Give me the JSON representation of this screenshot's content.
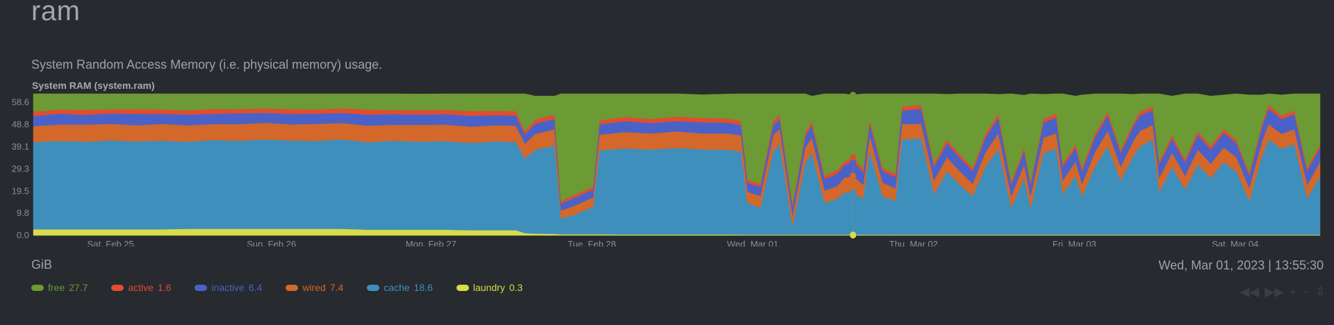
{
  "header": {
    "title": "ram",
    "description": "System Random Access Memory (i.e. physical memory) usage.",
    "chart_name": "System RAM (system.ram)"
  },
  "units": "GiB",
  "timestamp": "Wed, Mar 01, 2023 | 13:55:30",
  "legend": [
    {
      "name": "free",
      "value": "27.7",
      "color": "#6c9a34"
    },
    {
      "name": "active",
      "value": "1.6",
      "color": "#e14d2f"
    },
    {
      "name": "inactive",
      "value": "6.4",
      "color": "#4a62c7"
    },
    {
      "name": "wired",
      "value": "7.4",
      "color": "#d3682a"
    },
    {
      "name": "cache",
      "value": "18.6",
      "color": "#3f8fbd"
    },
    {
      "name": "laundry",
      "value": "0.3",
      "color": "#d8dc4a"
    }
  ],
  "toolbar": [
    {
      "name": "pan-left-icon",
      "glyph": "◀◀"
    },
    {
      "name": "pan-right-icon",
      "glyph": "▶▶"
    },
    {
      "name": "zoom-in-icon",
      "glyph": "+"
    },
    {
      "name": "zoom-out-icon",
      "glyph": "−"
    },
    {
      "name": "resize-icon",
      "glyph": "⇕"
    }
  ],
  "chart_data": {
    "type": "area",
    "stacked": true,
    "ylabel": "GiB",
    "ylim": [
      0,
      62.5
    ],
    "xlim": [
      0,
      1
    ],
    "yticks": [
      0.0,
      9.8,
      19.5,
      29.3,
      39.1,
      48.8,
      58.6
    ],
    "x_ticks": [
      {
        "label": "Sat, Feb 25,",
        "pos": 0.061
      },
      {
        "label": "Sun, Feb 26,",
        "pos": 0.186
      },
      {
        "label": "Mon, Feb 27,",
        "pos": 0.31
      },
      {
        "label": "Tue, Feb 28,",
        "pos": 0.435
      },
      {
        "label": "Wed, Mar 01,",
        "pos": 0.56
      },
      {
        "label": "Thu, Mar 02,",
        "pos": 0.685
      },
      {
        "label": "Fri, Mar 03,",
        "pos": 0.81
      },
      {
        "label": "Sat, Mar 04,",
        "pos": 0.935
      }
    ],
    "cursor_x": 0.637,
    "series_order": [
      "laundry",
      "cache",
      "wired",
      "inactive",
      "active",
      "free"
    ],
    "x": [
      0,
      0.02,
      0.04,
      0.06,
      0.08,
      0.1,
      0.12,
      0.14,
      0.16,
      0.18,
      0.2,
      0.22,
      0.24,
      0.26,
      0.28,
      0.3,
      0.32,
      0.34,
      0.36,
      0.375,
      0.382,
      0.39,
      0.405,
      0.41,
      0.42,
      0.43,
      0.435,
      0.44,
      0.46,
      0.48,
      0.5,
      0.52,
      0.54,
      0.55,
      0.555,
      0.565,
      0.575,
      0.58,
      0.59,
      0.6,
      0.605,
      0.615,
      0.625,
      0.63,
      0.637,
      0.645,
      0.65,
      0.66,
      0.67,
      0.675,
      0.69,
      0.7,
      0.71,
      0.72,
      0.73,
      0.74,
      0.75,
      0.76,
      0.77,
      0.775,
      0.785,
      0.795,
      0.8,
      0.81,
      0.815,
      0.825,
      0.835,
      0.845,
      0.855,
      0.86,
      0.87,
      0.875,
      0.885,
      0.895,
      0.905,
      0.915,
      0.925,
      0.935,
      0.945,
      0.955,
      0.96,
      0.97,
      0.98,
      0.99,
      1.0
    ],
    "series": [
      {
        "name": "laundry",
        "values": [
          2.7,
          2.7,
          2.7,
          2.7,
          2.7,
          2.7,
          2.9,
          2.9,
          2.9,
          2.9,
          2.9,
          2.9,
          2.9,
          2.5,
          2.5,
          2.5,
          2.5,
          2.3,
          2.3,
          2.3,
          1.0,
          0.8,
          0.7,
          0.5,
          0.5,
          0.5,
          0.5,
          0.5,
          0.4,
          0.4,
          0.4,
          0.4,
          0.4,
          0.3,
          0.3,
          0.3,
          0.3,
          0.3,
          0.3,
          0.3,
          0.3,
          0.3,
          0.3,
          0.3,
          0.3,
          0.3,
          0.3,
          0.3,
          0.3,
          0.3,
          0.3,
          0.3,
          0.3,
          0.3,
          0.3,
          0.3,
          0.3,
          0.3,
          0.3,
          0.3,
          0.3,
          0.3,
          0.3,
          0.3,
          0.3,
          0.3,
          0.3,
          0.3,
          0.3,
          0.3,
          0.3,
          0.3,
          0.3,
          0.3,
          0.3,
          0.3,
          0.3,
          0.3,
          0.3,
          0.3,
          0.3,
          0.3,
          0.3,
          0.3,
          0.3
        ]
      },
      {
        "name": "cache",
        "values": [
          38.5,
          39.0,
          38.7,
          39.2,
          38.8,
          39.1,
          38.5,
          39.2,
          38.9,
          39.4,
          39.0,
          38.8,
          39.5,
          38.6,
          39.3,
          38.9,
          39.1,
          38.5,
          39.2,
          38.9,
          33.0,
          37.0,
          39.0,
          7.0,
          8.5,
          11.0,
          12.0,
          37.0,
          38.0,
          37.5,
          38.2,
          37.6,
          37.4,
          36.8,
          14.0,
          12.0,
          37.0,
          40.0,
          4.0,
          32.0,
          36.0,
          14.0,
          16.0,
          18.6,
          18.6,
          16.0,
          37.0,
          17.0,
          15.0,
          42.0,
          42.5,
          18.0,
          28.0,
          22.0,
          17.0,
          30.0,
          38.0,
          12.0,
          25.0,
          12.0,
          36.0,
          38.0,
          18.0,
          26.0,
          17.0,
          30.0,
          39.0,
          24.0,
          35.0,
          39.0,
          42.0,
          19.0,
          30.0,
          20.0,
          31.0,
          25.0,
          32.0,
          28.0,
          15.0,
          35.0,
          42.0,
          38.0,
          40.0,
          16.0,
          26.0
        ]
      },
      {
        "name": "wired",
        "values": [
          7.0,
          7.2,
          7.5,
          7.3,
          7.1,
          7.4,
          7.2,
          7.0,
          7.3,
          7.4,
          7.1,
          7.5,
          7.2,
          7.3,
          7.0,
          7.4,
          7.3,
          7.2,
          7.1,
          7.2,
          6.5,
          7.0,
          7.1,
          3.5,
          4.0,
          4.0,
          4.2,
          7.0,
          7.2,
          7.1,
          7.3,
          7.0,
          7.2,
          7.1,
          5.0,
          5.0,
          7.0,
          6.8,
          4.5,
          6.5,
          6.8,
          5.5,
          5.5,
          6.5,
          7.4,
          6.0,
          6.8,
          6.0,
          5.5,
          6.8,
          6.5,
          6.0,
          6.2,
          6.0,
          5.5,
          6.5,
          6.8,
          5.0,
          6.0,
          5.0,
          6.8,
          6.8,
          6.0,
          6.2,
          5.5,
          6.5,
          6.8,
          6.0,
          6.5,
          6.8,
          6.5,
          6.0,
          6.2,
          6.0,
          6.5,
          6.3,
          6.5,
          6.2,
          5.5,
          6.5,
          6.8,
          6.5,
          6.6,
          6.0,
          6.2
        ]
      },
      {
        "name": "inactive",
        "values": [
          4.5,
          4.8,
          4.3,
          4.6,
          5.0,
          4.4,
          4.7,
          4.5,
          4.8,
          4.3,
          4.6,
          4.5,
          4.4,
          4.9,
          4.7,
          4.5,
          4.6,
          4.8,
          4.4,
          4.5,
          4.0,
          4.5,
          4.6,
          3.0,
          3.5,
          3.5,
          3.5,
          4.5,
          4.8,
          4.6,
          4.5,
          4.9,
          4.7,
          4.5,
          4.0,
          4.0,
          4.5,
          4.3,
          4.0,
          5.0,
          5.5,
          5.0,
          5.5,
          5.5,
          6.4,
          5.5,
          5.2,
          5.0,
          5.0,
          6.0,
          6.5,
          6.0,
          6.2,
          6.0,
          5.5,
          6.5,
          6.8,
          5.0,
          6.0,
          5.0,
          6.8,
          6.8,
          6.0,
          6.2,
          5.5,
          6.5,
          6.8,
          6.0,
          6.5,
          6.8,
          6.5,
          6.0,
          6.2,
          6.0,
          6.5,
          6.3,
          6.5,
          6.2,
          5.5,
          6.5,
          6.8,
          6.5,
          6.6,
          6.0,
          6.2
        ]
      },
      {
        "name": "active",
        "values": [
          2.0,
          1.8,
          2.2,
          1.9,
          2.1,
          2.0,
          1.9,
          2.2,
          1.8,
          2.0,
          2.1,
          1.9,
          2.0,
          2.2,
          1.8,
          2.0,
          1.9,
          2.1,
          2.0,
          1.9,
          1.5,
          1.8,
          1.9,
          1.2,
          1.3,
          1.3,
          1.3,
          1.8,
          1.9,
          1.8,
          2.0,
          1.9,
          1.8,
          1.8,
          1.5,
          1.5,
          1.8,
          1.7,
          1.3,
          1.6,
          1.6,
          1.5,
          1.6,
          1.6,
          1.6,
          1.5,
          1.6,
          1.5,
          1.5,
          1.7,
          1.7,
          1.5,
          1.6,
          1.5,
          1.5,
          1.6,
          1.7,
          1.4,
          1.5,
          1.4,
          1.6,
          1.7,
          1.5,
          1.6,
          1.5,
          1.6,
          1.7,
          1.5,
          1.6,
          1.7,
          1.6,
          1.5,
          1.6,
          1.5,
          1.6,
          1.5,
          1.6,
          1.5,
          1.4,
          1.6,
          1.7,
          1.6,
          1.6,
          1.5,
          1.5
        ]
      },
      {
        "name": "free",
        "values": [
          7.8,
          7.0,
          7.1,
          6.8,
          6.8,
          6.9,
          7.3,
          6.7,
          7.0,
          6.5,
          6.8,
          7.0,
          6.5,
          7.0,
          7.2,
          7.1,
          7.1,
          7.6,
          7.5,
          7.7,
          17.5,
          10.4,
          8.2,
          47.3,
          44.7,
          42.2,
          41.0,
          11.7,
          10.2,
          11.1,
          10.1,
          10.3,
          10.9,
          12.0,
          37.7,
          40.7,
          12.4,
          10.1,
          52.4,
          17.1,
          11.3,
          36.2,
          33.6,
          30.0,
          27.7,
          33.2,
          11.6,
          32.7,
          35.2,
          5.7,
          5.0,
          31.2,
          20.0,
          26.7,
          32.7,
          17.6,
          8.7,
          39.8,
          23.1,
          39.8,
          10.8,
          8.9,
          31.7,
          21.2,
          32.2,
          18.1,
          8.9,
          25.2,
          12.4,
          8.9,
          5.6,
          30.7,
          17.2,
          29.7,
          16.6,
          22.1,
          15.1,
          21.3,
          34.3,
          12.1,
          5.6,
          9.1,
          7.4,
          33.7,
          22.3
        ]
      }
    ]
  }
}
